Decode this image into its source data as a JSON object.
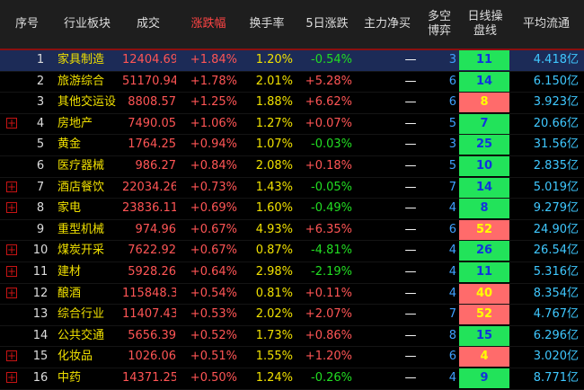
{
  "header": {
    "index": "序号",
    "sector": "行业板块",
    "volume": "成交",
    "change": "涨跌幅",
    "turnover": "换手率",
    "five_day": "5日涨跌",
    "main_net": "主力净买",
    "long_short": "多空\n博弈",
    "daily_ops": "日线操\n盘线",
    "avg_flow": "平均流通"
  },
  "rows": [
    {
      "idx": "1",
      "name": "家具制造",
      "vol": "12404.69",
      "chg": "+1.84%",
      "turn": "1.20%",
      "five": "-0.54%",
      "main": "—",
      "cnt": "3",
      "day": "11",
      "day_color": "green",
      "flow": "4.418亿",
      "expand": false,
      "selected": true
    },
    {
      "idx": "2",
      "name": "旅游综合",
      "vol": "51170.94",
      "chg": "+1.78%",
      "turn": "2.01%",
      "five": "+5.28%",
      "main": "—",
      "cnt": "6",
      "day": "14",
      "day_color": "green",
      "flow": "6.150亿",
      "expand": false,
      "selected": false
    },
    {
      "idx": "3",
      "name": "其他交运设",
      "vol": "8808.57",
      "chg": "+1.25%",
      "turn": "1.88%",
      "five": "+6.62%",
      "main": "—",
      "cnt": "6",
      "day": "8",
      "day_color": "red",
      "flow": "3.923亿",
      "expand": false,
      "selected": false
    },
    {
      "idx": "4",
      "name": "房地产",
      "vol": "7490.05",
      "chg": "+1.06%",
      "turn": "1.27%",
      "five": "+0.07%",
      "main": "—",
      "cnt": "5",
      "day": "7",
      "day_color": "green",
      "flow": "20.66亿",
      "expand": true,
      "selected": false
    },
    {
      "idx": "5",
      "name": "黄金",
      "vol": "1764.25",
      "chg": "+0.94%",
      "turn": "1.07%",
      "five": "-0.03%",
      "main": "—",
      "cnt": "3",
      "day": "25",
      "day_color": "green",
      "flow": "31.56亿",
      "expand": false,
      "selected": false
    },
    {
      "idx": "6",
      "name": "医疗器械",
      "vol": "986.27",
      "chg": "+0.84%",
      "turn": "2.08%",
      "five": "+0.18%",
      "main": "—",
      "cnt": "5",
      "day": "10",
      "day_color": "green",
      "flow": "2.835亿",
      "expand": false,
      "selected": false
    },
    {
      "idx": "7",
      "name": "酒店餐饮",
      "vol": "22034.26",
      "chg": "+0.73%",
      "turn": "1.43%",
      "five": "-0.05%",
      "main": "—",
      "cnt": "7",
      "day": "14",
      "day_color": "green",
      "flow": "5.019亿",
      "expand": true,
      "selected": false
    },
    {
      "idx": "8",
      "name": "家电",
      "vol": "23836.11",
      "chg": "+0.69%",
      "turn": "1.60%",
      "five": "-0.49%",
      "main": "—",
      "cnt": "4",
      "day": "8",
      "day_color": "green",
      "flow": "9.279亿",
      "expand": true,
      "selected": false
    },
    {
      "idx": "9",
      "name": "重型机械",
      "vol": "974.96",
      "chg": "+0.67%",
      "turn": "4.93%",
      "five": "+6.35%",
      "main": "—",
      "cnt": "6",
      "day": "52",
      "day_color": "red",
      "flow": "24.90亿",
      "expand": false,
      "selected": false
    },
    {
      "idx": "10",
      "name": "煤炭开采",
      "vol": "7622.92",
      "chg": "+0.67%",
      "turn": "0.87%",
      "five": "-4.81%",
      "main": "—",
      "cnt": "4",
      "day": "26",
      "day_color": "green",
      "flow": "26.54亿",
      "expand": true,
      "selected": false
    },
    {
      "idx": "11",
      "name": "建材",
      "vol": "5928.26",
      "chg": "+0.64%",
      "turn": "2.98%",
      "five": "-2.19%",
      "main": "—",
      "cnt": "4",
      "day": "11",
      "day_color": "green",
      "flow": "5.316亿",
      "expand": true,
      "selected": false
    },
    {
      "idx": "12",
      "name": "酿酒",
      "vol": "115848.30",
      "chg": "+0.54%",
      "turn": "0.81%",
      "five": "+0.11%",
      "main": "—",
      "cnt": "4",
      "day": "40",
      "day_color": "red",
      "flow": "8.354亿",
      "expand": true,
      "selected": false
    },
    {
      "idx": "13",
      "name": "综合行业",
      "vol": "11407.43",
      "chg": "+0.53%",
      "turn": "2.02%",
      "five": "+2.07%",
      "main": "—",
      "cnt": "7",
      "day": "52",
      "day_color": "red",
      "flow": "4.767亿",
      "expand": false,
      "selected": false
    },
    {
      "idx": "14",
      "name": "公共交通",
      "vol": "5656.39",
      "chg": "+0.52%",
      "turn": "1.73%",
      "five": "+0.86%",
      "main": "—",
      "cnt": "8",
      "day": "15",
      "day_color": "green",
      "flow": "6.296亿",
      "expand": false,
      "selected": false
    },
    {
      "idx": "15",
      "name": "化妆品",
      "vol": "1026.06",
      "chg": "+0.51%",
      "turn": "1.55%",
      "five": "+1.20%",
      "main": "—",
      "cnt": "6",
      "day": "4",
      "day_color": "red",
      "flow": "3.020亿",
      "expand": true,
      "selected": false
    },
    {
      "idx": "16",
      "name": "中药",
      "vol": "14371.25",
      "chg": "+0.50%",
      "turn": "1.24%",
      "five": "-0.26%",
      "main": "—",
      "cnt": "4",
      "day": "9",
      "day_color": "green",
      "flow": "8.771亿",
      "expand": true,
      "selected": false
    }
  ]
}
